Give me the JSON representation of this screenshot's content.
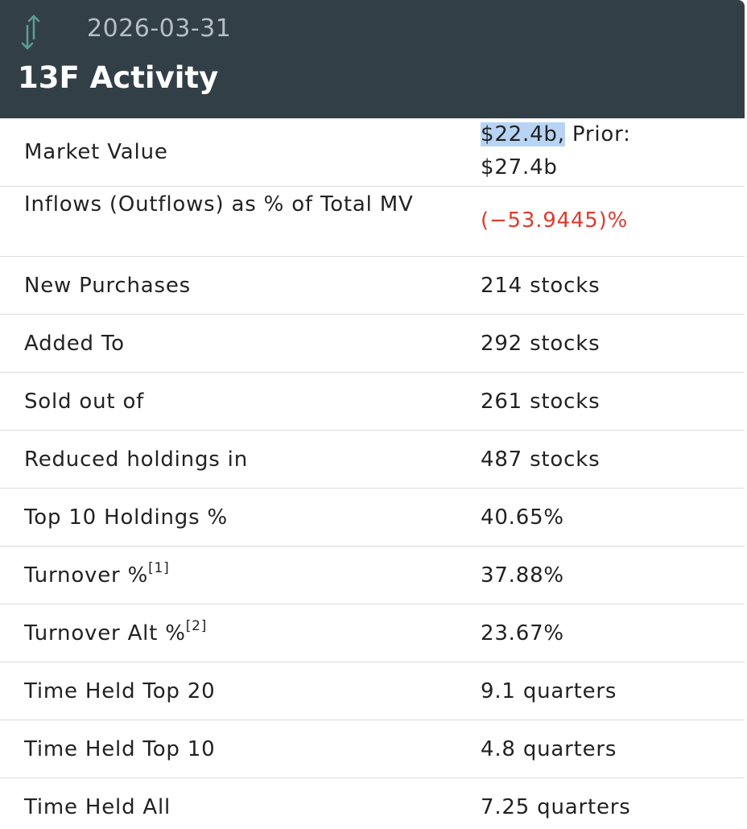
{
  "header": {
    "date": "2026-03-31",
    "title": "13F Activity",
    "icon": "up-down-arrows-icon"
  },
  "rows": [
    {
      "label": "Market Value",
      "value_highlight": "$22.4b,",
      "value_rest": " Prior:",
      "value_line2": "$27.4b"
    },
    {
      "label": "Inflows (Outflows) as % of Total MV",
      "value": "(−53.9445)%"
    },
    {
      "label": "New Purchases",
      "value": "214 stocks"
    },
    {
      "label": "Added To",
      "value": "292 stocks"
    },
    {
      "label": "Sold out of",
      "value": "261 stocks"
    },
    {
      "label": "Reduced holdings in",
      "value": "487 stocks"
    },
    {
      "label": "Top 10 Holdings %",
      "value": "40.65%"
    },
    {
      "label": "Turnover %",
      "footnote": "[1]",
      "value": "37.88%"
    },
    {
      "label": "Turnover Alt %",
      "footnote": "[2]",
      "value": "23.67%"
    },
    {
      "label": "Time Held Top 20",
      "value": "9.1 quarters"
    },
    {
      "label": "Time Held Top 10",
      "value": "4.8 quarters"
    },
    {
      "label": "Time Held All",
      "value": "7.25 quarters"
    }
  ],
  "colors": {
    "header_bg": "#333f47",
    "negative": "#e03a2f",
    "selection": "#b7d4f5"
  }
}
